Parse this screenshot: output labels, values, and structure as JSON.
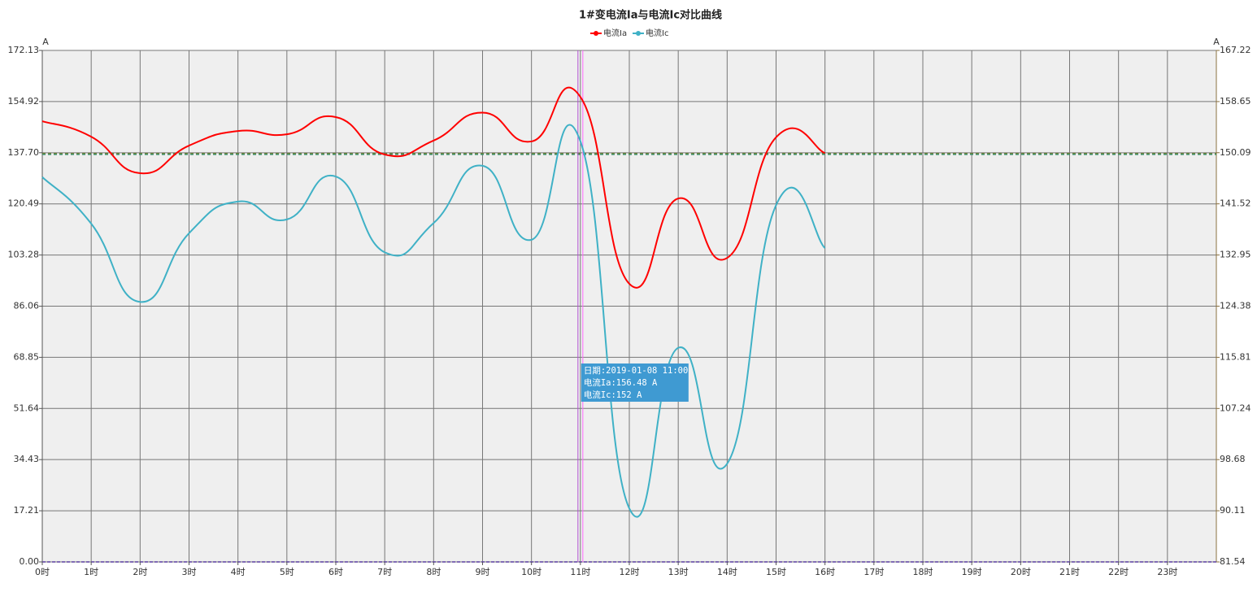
{
  "chart_data": {
    "type": "line",
    "title": "1#变电流Ia与电流Ic对比曲线",
    "y_axis_label": "A",
    "y2_axis_label": "A",
    "categories": [
      "0时",
      "1时",
      "2时",
      "3时",
      "4时",
      "5时",
      "6时",
      "7时",
      "8时",
      "9时",
      "10时",
      "11时",
      "12时",
      "13时",
      "14时",
      "15时",
      "16时",
      "17时",
      "18时",
      "19时",
      "20时",
      "21时",
      "22时",
      "23时"
    ],
    "series": [
      {
        "name": "电流Ia",
        "color": "#ff0000",
        "values": [
          148.3,
          143.1,
          130.8,
          140.1,
          145.0,
          143.9,
          149.7,
          137.1,
          141.8,
          151.2,
          141.5,
          156.48,
          93.6,
          122.3,
          102.3,
          142.9,
          137.6,
          null,
          null,
          null,
          null,
          null,
          null,
          null
        ]
      },
      {
        "name": "电流Ic",
        "color": "#3fb1c6",
        "axis": "y2",
        "values": [
          146.0,
          138.2,
          125.1,
          136.6,
          141.9,
          138.9,
          146.1,
          133.4,
          138.3,
          147.9,
          135.5,
          152,
          90.5,
          117.4,
          98.0,
          141.3,
          134.1,
          null,
          null,
          null,
          null,
          null,
          null,
          null
        ]
      }
    ],
    "ylim": [
      0,
      172.13
    ],
    "yticks": [
      {
        "value": 0,
        "label": "0.00"
      },
      17.21,
      34.43,
      51.64,
      68.85,
      86.06,
      103.28,
      120.49,
      {
        "value": 137.7,
        "label": "137.70"
      },
      154.92,
      172.13
    ],
    "y2lim": [
      81.54,
      167.22
    ],
    "y2ticks": [
      81.54,
      90.11,
      98.68,
      107.24,
      115.81,
      124.38,
      132.95,
      141.52,
      150.09,
      158.65,
      167.22
    ],
    "mark_lines": [
      {
        "axis": "y",
        "value": 137.4,
        "color": "#6b7a2a"
      },
      {
        "axis": "y2",
        "value": 149.8,
        "color": "#3f8f6a"
      }
    ],
    "grid": true,
    "tooltip": {
      "category_index": 11,
      "lines": [
        "日期:2019-01-08 11:00",
        "电流Ia:156.48 A",
        "电流Ic:152 A"
      ]
    }
  }
}
